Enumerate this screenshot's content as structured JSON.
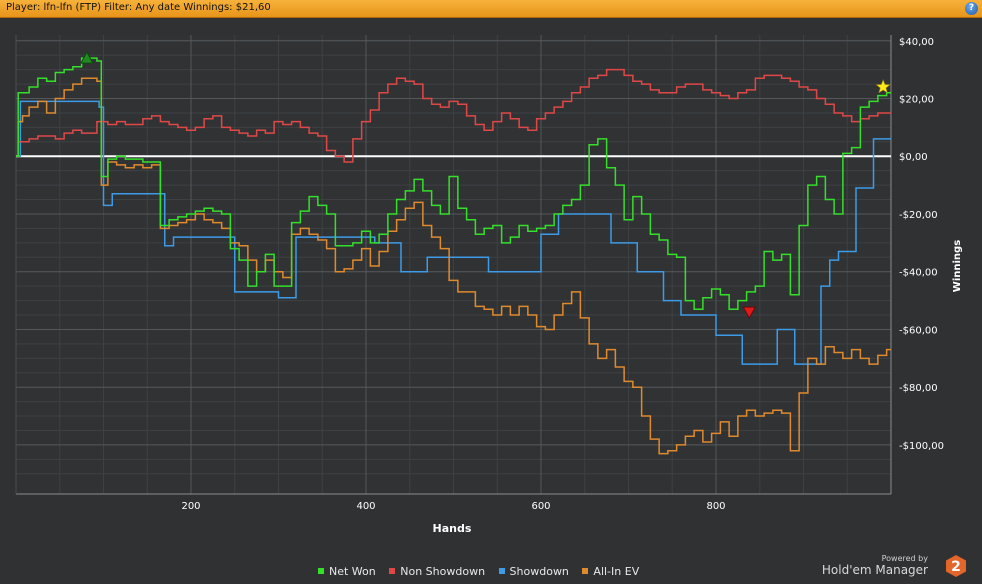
{
  "title_bar": "Player: lfn-lfn (FTP) Filter: Any date Winnings: $21,60",
  "help_label": "?",
  "colors": {
    "background": "#2f3133",
    "grid": "#55585b",
    "zero_line": "#ffffff",
    "net_won": "#34e02a",
    "non_showdown": "#e04848",
    "showdown": "#3d9be8",
    "all_in_ev": "#e08a2e"
  },
  "chart_data": {
    "type": "line",
    "xlabel": "Hands",
    "ylabel": "Winnings",
    "xlim": [
      0,
      1000
    ],
    "ylim": [
      -117,
      42
    ],
    "x_ticks": [
      200,
      400,
      600,
      800
    ],
    "y_ticks": [
      40,
      20,
      0,
      -20,
      -40,
      -60,
      -80,
      -100
    ],
    "y_tick_labels": [
      "$40,00",
      "$20,00",
      "$0,00",
      "-$20,00",
      "-$40,00",
      "-$60,00",
      "-$80,00",
      "-$100,00"
    ],
    "x_tick_labels": [
      "200",
      "400",
      "600",
      "800"
    ],
    "grid": true,
    "legend_placement": "bottom-center",
    "x": [
      0,
      5,
      10,
      20,
      30,
      40,
      50,
      60,
      70,
      80,
      90,
      95,
      100,
      110,
      120,
      130,
      140,
      150,
      160,
      170,
      180,
      190,
      200,
      210,
      220,
      230,
      240,
      250,
      260,
      270,
      280,
      290,
      300,
      310,
      320,
      330,
      340,
      350,
      360,
      370,
      380,
      390,
      400,
      410,
      420,
      430,
      440,
      450,
      460,
      470,
      480,
      490,
      500,
      510,
      520,
      530,
      540,
      550,
      560,
      570,
      580,
      590,
      600,
      610,
      620,
      630,
      640,
      650,
      660,
      670,
      680,
      690,
      700,
      710,
      720,
      730,
      740,
      750,
      760,
      770,
      780,
      790,
      800,
      810,
      820,
      830,
      840,
      850,
      860,
      870,
      880,
      890,
      900,
      910,
      920,
      930,
      940,
      950,
      960,
      970,
      980,
      990,
      1000
    ],
    "series": [
      {
        "name": "Net Won",
        "values": [
          0,
          22,
          22,
          24,
          27,
          26,
          29,
          30,
          31,
          34,
          34,
          33,
          -7,
          -1,
          0,
          -1,
          -1,
          -2,
          -2,
          -24,
          -22,
          -21,
          -20,
          -19,
          -18,
          -19,
          -20,
          -32,
          -36,
          -45,
          -40,
          -34,
          -45,
          -45,
          -23,
          -19,
          -14,
          -17,
          -20,
          -31,
          -31,
          -30,
          -26,
          -30,
          -27,
          -20,
          -15,
          -12,
          -8,
          -12,
          -17,
          -20,
          -7,
          -18,
          -22,
          -27,
          -25,
          -24,
          -30,
          -28,
          -24,
          -26,
          -25,
          -24,
          -20,
          -17,
          -15,
          -10,
          4,
          6,
          -4,
          -10,
          -22,
          -14,
          -20,
          -27,
          -29,
          -34,
          -35,
          -50,
          -53,
          -49,
          -46,
          -48,
          -53,
          -50,
          -47,
          -45,
          -33,
          -36,
          -34,
          -48,
          -24,
          -10,
          -7,
          -15,
          -20,
          1,
          3,
          17,
          19,
          21,
          22
        ]
      },
      {
        "name": "Non Showdown",
        "values": [
          0,
          5,
          5,
          6,
          7,
          7,
          6,
          8,
          9,
          8,
          8,
          12,
          12,
          11,
          12,
          11,
          11,
          13,
          14,
          12,
          11,
          10,
          9,
          10,
          13,
          14,
          10,
          9,
          8,
          7,
          9,
          8,
          12,
          11,
          12,
          10,
          8,
          7,
          2,
          0,
          -2,
          6,
          12,
          16,
          22,
          25,
          27,
          26,
          25,
          20,
          18,
          17,
          19,
          18,
          14,
          11,
          9,
          12,
          15,
          13,
          10,
          9,
          13,
          15,
          17,
          19,
          22,
          24,
          27,
          28,
          30,
          30,
          28,
          26,
          25,
          23,
          22,
          22,
          24,
          25,
          25,
          23,
          22,
          21,
          20,
          22,
          23,
          27,
          28,
          28,
          27,
          26,
          24,
          23,
          20,
          18,
          15,
          14,
          12,
          13,
          14,
          15,
          15
        ]
      },
      {
        "name": "Showdown",
        "values": [
          0,
          19,
          19,
          19,
          19,
          19,
          19,
          19,
          19,
          19,
          19,
          17,
          -17,
          -13,
          -13,
          -13,
          -13,
          -13,
          -13,
          -31,
          -28,
          -28,
          -28,
          -28,
          -28,
          -28,
          -28,
          -47,
          -47,
          -47,
          -47,
          -47,
          -49,
          -49,
          -28,
          -28,
          -28,
          -28,
          -28,
          -28,
          -28,
          -28,
          -28,
          -30,
          -30,
          -30,
          -40,
          -40,
          -40,
          -35,
          -35,
          -35,
          -35,
          -35,
          -35,
          -35,
          -40,
          -40,
          -40,
          -40,
          -40,
          -40,
          -27,
          -27,
          -20,
          -20,
          -20,
          -20,
          -20,
          -20,
          -30,
          -30,
          -30,
          -40,
          -40,
          -40,
          -50,
          -50,
          -55,
          -55,
          -55,
          -55,
          -62,
          -62,
          -62,
          -72,
          -72,
          -72,
          -72,
          -60,
          -60,
          -72,
          -72,
          -72,
          -45,
          -36,
          -33,
          -33,
          -11,
          -11,
          6,
          6,
          6
        ]
      },
      {
        "name": "All-In EV",
        "values": [
          0,
          12,
          14,
          17,
          19,
          15,
          20,
          23,
          25,
          27,
          27,
          26,
          -10,
          -2,
          -3,
          -4,
          -3,
          -4,
          -3,
          -25,
          -24,
          -23,
          -22,
          -20,
          -22,
          -23,
          -25,
          -30,
          -31,
          -36,
          -40,
          -36,
          -40,
          -42,
          -27,
          -25,
          -27,
          -29,
          -32,
          -40,
          -39,
          -36,
          -32,
          -38,
          -33,
          -26,
          -22,
          -18,
          -16,
          -24,
          -28,
          -32,
          -43,
          -47,
          -47,
          -52,
          -53,
          -55,
          -52,
          -55,
          -52,
          -55,
          -59,
          -60,
          -55,
          -51,
          -47,
          -56,
          -65,
          -70,
          -67,
          -73,
          -78,
          -80,
          -90,
          -98,
          -103,
          -102,
          -100,
          -97,
          -95,
          -99,
          -96,
          -92,
          -97,
          -90,
          -88,
          -90,
          -89,
          -88,
          -89,
          -102,
          -82,
          -70,
          -72,
          -66,
          -68,
          -70,
          -67,
          -70,
          -72,
          -69,
          -67
        ]
      }
    ],
    "markers": [
      {
        "type": "max",
        "series": "Net Won",
        "x": 81,
        "y": 34,
        "color": "#1f8a1f"
      },
      {
        "type": "min",
        "series": "Net Won",
        "x": 838,
        "y": -54,
        "color": "#e01a1a"
      },
      {
        "type": "current",
        "series": "Net Won",
        "x": 991,
        "y": 24,
        "color": "#ffe81a"
      }
    ]
  },
  "legend": [
    {
      "label": "Net Won",
      "color": "#34e02a"
    },
    {
      "label": "Non Showdown",
      "color": "#e04848"
    },
    {
      "label": "Showdown",
      "color": "#3d9be8"
    },
    {
      "label": "All-In EV",
      "color": "#e08a2e"
    }
  ],
  "branding": {
    "powered_by": "Powered by",
    "product": "Hold'em Manager",
    "logo_digit": "2"
  }
}
